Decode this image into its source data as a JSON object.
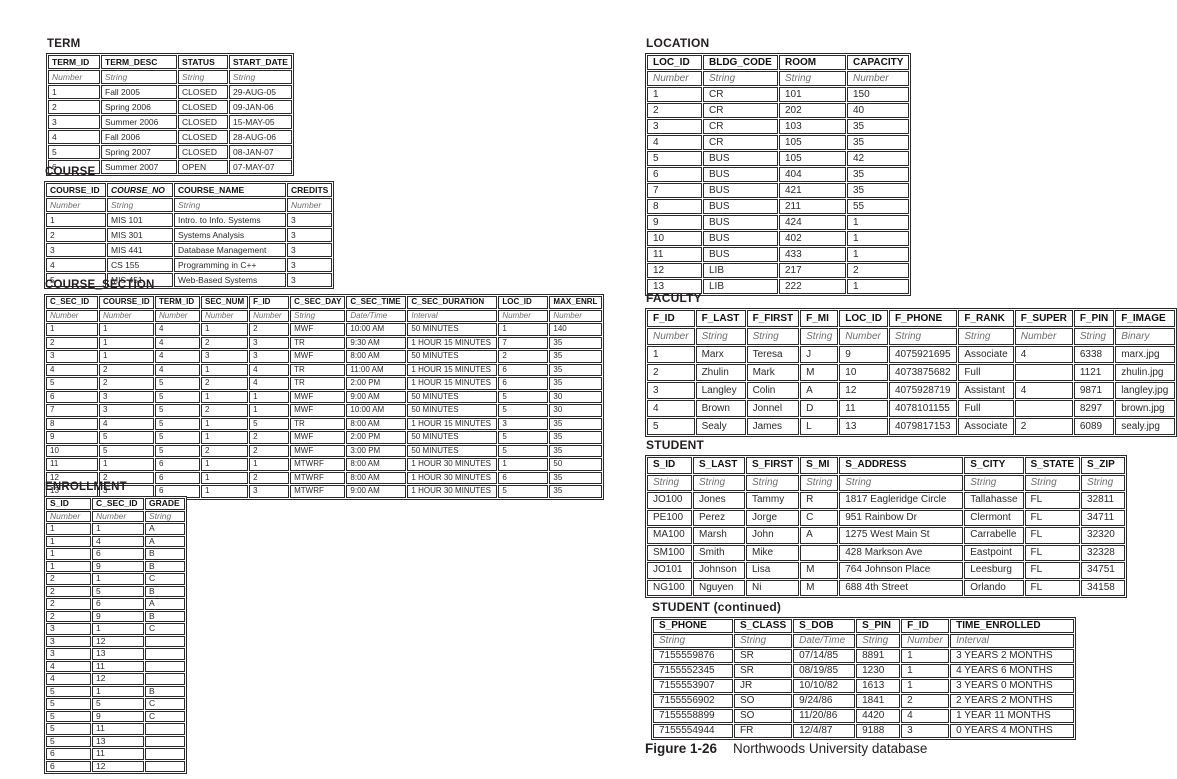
{
  "colors": {
    "text": "#231f20",
    "muted_type_text": "#6e6e6e",
    "border": "#2b2b2b",
    "background": "#ffffff"
  },
  "tables": {
    "term": {
      "title": "TERM",
      "headers": [
        "TERM_ID",
        "TERM_DESC",
        "STATUS",
        "START_DATE"
      ],
      "types": [
        "Number",
        "String",
        "String",
        "String"
      ],
      "rows": [
        [
          "1",
          "Fall 2005",
          "CLOSED",
          "29-AUG-05"
        ],
        [
          "2",
          "Spring 2006",
          "CLOSED",
          "09-JAN-06"
        ],
        [
          "3",
          "Summer 2006",
          "CLOSED",
          "15-MAY-05"
        ],
        [
          "4",
          "Fall 2006",
          "CLOSED",
          "28-AUG-06"
        ],
        [
          "5",
          "Spring 2007",
          "CLOSED",
          "08-JAN-07"
        ],
        [
          "6",
          "Summer 2007",
          "OPEN",
          "07-MAY-07"
        ]
      ]
    },
    "course": {
      "title": "COURSE",
      "headers": [
        "COURSE_ID",
        "COURSE_NO",
        "COURSE_NAME",
        "CREDITS"
      ],
      "italic_headers": [
        1
      ],
      "types": [
        "Number",
        "String",
        "String",
        "Number"
      ],
      "rows": [
        [
          "1",
          "MIS 101",
          "Intro. to Info. Systems",
          "3"
        ],
        [
          "2",
          "MIS 301",
          "Systems Analysis",
          "3"
        ],
        [
          "3",
          "MIS 441",
          "Database Management",
          "3"
        ],
        [
          "4",
          "CS 155",
          "Programming in C++",
          "3"
        ],
        [
          "5",
          "MIS 451",
          "Web-Based Systems",
          "3"
        ]
      ]
    },
    "course_section": {
      "title": "COURSE_SECTION",
      "headers": [
        "C_SEC_ID",
        "COURSE_ID",
        "TERM_ID",
        "SEC_NUM",
        "F_ID",
        "C_SEC_DAY",
        "C_SEC_TIME",
        "C_SEC_DURATION",
        "LOC_ID",
        "MAX_ENRL"
      ],
      "types": [
        "Number",
        "Number",
        "Number",
        "Number",
        "Number",
        "String",
        "Date/Time",
        "Interval",
        "Number",
        "Number"
      ],
      "rows": [
        [
          "1",
          "1",
          "4",
          "1",
          "2",
          "MWF",
          "10:00 AM",
          "50 MINUTES",
          "1",
          "140"
        ],
        [
          "2",
          "1",
          "4",
          "2",
          "3",
          "TR",
          "9:30 AM",
          "1 HOUR 15 MINUTES",
          "7",
          "35"
        ],
        [
          "3",
          "1",
          "4",
          "3",
          "3",
          "MWF",
          "8:00 AM",
          "50 MINUTES",
          "2",
          "35"
        ],
        [
          "4",
          "2",
          "4",
          "1",
          "4",
          "TR",
          "11:00 AM",
          "1 HOUR 15 MINUTES",
          "6",
          "35"
        ],
        [
          "5",
          "2",
          "5",
          "2",
          "4",
          "TR",
          "2:00 PM",
          "1 HOUR 15 MINUTES",
          "6",
          "35"
        ],
        [
          "6",
          "3",
          "5",
          "1",
          "1",
          "MWF",
          "9:00 AM",
          "50 MINUTES",
          "5",
          "30"
        ],
        [
          "7",
          "3",
          "5",
          "2",
          "1",
          "MWF",
          "10:00 AM",
          "50 MINUTES",
          "5",
          "30"
        ],
        [
          "8",
          "4",
          "5",
          "1",
          "5",
          "TR",
          "8:00 AM",
          "1 HOUR 15 MINUTES",
          "3",
          "35"
        ],
        [
          "9",
          "5",
          "5",
          "1",
          "2",
          "MWF",
          "2:00 PM",
          "50 MINUTES",
          "5",
          "35"
        ],
        [
          "10",
          "5",
          "5",
          "2",
          "2",
          "MWF",
          "3:00 PM",
          "50 MINUTES",
          "5",
          "35"
        ],
        [
          "11",
          "1",
          "6",
          "1",
          "1",
          "MTWRF",
          "8:00 AM",
          "1 HOUR 30 MINUTES",
          "1",
          "50"
        ],
        [
          "12",
          "2",
          "6",
          "1",
          "2",
          "MTWRF",
          "8:00 AM",
          "1 HOUR 30 MINUTES",
          "6",
          "35"
        ],
        [
          "13",
          "3",
          "6",
          "1",
          "3",
          "MTWRF",
          "9:00 AM",
          "1 HOUR 30 MINUTES",
          "5",
          "35"
        ]
      ]
    },
    "enrollment": {
      "title": "ENROLLMENT",
      "headers": [
        "S_ID",
        "C_SEC_ID",
        "GRADE"
      ],
      "types": [
        "Number",
        "Number",
        "String"
      ],
      "rows": [
        [
          "1",
          "1",
          "A"
        ],
        [
          "1",
          "4",
          "A"
        ],
        [
          "1",
          "6",
          "B"
        ],
        [
          "1",
          "9",
          "B"
        ],
        [
          "2",
          "1",
          "C"
        ],
        [
          "2",
          "5",
          "B"
        ],
        [
          "2",
          "6",
          "A"
        ],
        [
          "2",
          "9",
          "B"
        ],
        [
          "3",
          "1",
          "C"
        ],
        [
          "3",
          "12",
          ""
        ],
        [
          "3",
          "13",
          ""
        ],
        [
          "4",
          "11",
          ""
        ],
        [
          "4",
          "12",
          ""
        ],
        [
          "5",
          "1",
          "B"
        ],
        [
          "5",
          "5",
          "C"
        ],
        [
          "5",
          "9",
          "C"
        ],
        [
          "5",
          "11",
          ""
        ],
        [
          "5",
          "13",
          ""
        ],
        [
          "6",
          "11",
          ""
        ],
        [
          "6",
          "12",
          ""
        ]
      ]
    },
    "location": {
      "title": "LOCATION",
      "headers": [
        "LOC_ID",
        "BLDG_CODE",
        "ROOM",
        "CAPACITY"
      ],
      "types": [
        "Number",
        "String",
        "String",
        "Number"
      ],
      "rows": [
        [
          "1",
          "CR",
          "101",
          "150"
        ],
        [
          "2",
          "CR",
          "202",
          "40"
        ],
        [
          "3",
          "CR",
          "103",
          "35"
        ],
        [
          "4",
          "CR",
          "105",
          "35"
        ],
        [
          "5",
          "BUS",
          "105",
          "42"
        ],
        [
          "6",
          "BUS",
          "404",
          "35"
        ],
        [
          "7",
          "BUS",
          "421",
          "35"
        ],
        [
          "8",
          "BUS",
          "211",
          "55"
        ],
        [
          "9",
          "BUS",
          "424",
          "1"
        ],
        [
          "10",
          "BUS",
          "402",
          "1"
        ],
        [
          "11",
          "BUS",
          "433",
          "1"
        ],
        [
          "12",
          "LIB",
          "217",
          "2"
        ],
        [
          "13",
          "LIB",
          "222",
          "1"
        ]
      ]
    },
    "faculty": {
      "title": "FACULTY",
      "headers": [
        "F_ID",
        "F_LAST",
        "F_FIRST",
        "F_MI",
        "LOC_ID",
        "F_PHONE",
        "F_RANK",
        "F_SUPER",
        "F_PIN",
        "F_IMAGE"
      ],
      "types": [
        "Number",
        "String",
        "String",
        "String",
        "Number",
        "String",
        "String",
        "Number",
        "String",
        "Binary"
      ],
      "rows": [
        [
          "1",
          "Marx",
          "Teresa",
          "J",
          "9",
          "4075921695",
          "Associate",
          "4",
          "6338",
          "marx.jpg"
        ],
        [
          "2",
          "Zhulin",
          "Mark",
          "M",
          "10",
          "4073875682",
          "Full",
          "",
          "1121",
          "zhulin.jpg"
        ],
        [
          "3",
          "Langley",
          "Colin",
          "A",
          "12",
          "4075928719",
          "Assistant",
          "4",
          "9871",
          "langley.jpg"
        ],
        [
          "4",
          "Brown",
          "Jonnel",
          "D",
          "11",
          "4078101155",
          "Full",
          "",
          "8297",
          "brown.jpg"
        ],
        [
          "5",
          "Sealy",
          "James",
          "L",
          "13",
          "4079817153",
          "Associate",
          "2",
          "6089",
          "sealy.jpg"
        ]
      ]
    },
    "student": {
      "title": "STUDENT",
      "headers": [
        "S_ID",
        "S_LAST",
        "S_FIRST",
        "S_MI",
        "S_ADDRESS",
        "S_CITY",
        "S_STATE",
        "S_ZIP"
      ],
      "types": [
        "String",
        "String",
        "String",
        "String",
        "String",
        "String",
        "String",
        "String"
      ],
      "rows": [
        [
          "JO100",
          "Jones",
          "Tammy",
          "R",
          "1817 Eagleridge Circle",
          "Tallahasse",
          "FL",
          "32811"
        ],
        [
          "PE100",
          "Perez",
          "Jorge",
          "C",
          "951 Rainbow Dr",
          "Clermont",
          "FL",
          "34711"
        ],
        [
          "MA100",
          "Marsh",
          "John",
          "A",
          "1275 West Main St",
          "Carrabelle",
          "FL",
          "32320"
        ],
        [
          "SM100",
          "Smith",
          "Mike",
          "",
          "428 Markson Ave",
          "Eastpoint",
          "FL",
          "32328"
        ],
        [
          "JO101",
          "Johnson",
          "Lisa",
          "M",
          "764 Johnson Place",
          "Leesburg",
          "FL",
          "34751"
        ],
        [
          "NG100",
          "Nguyen",
          "Ni",
          "M",
          "688 4th Street",
          "Orlando",
          "FL",
          "34158"
        ]
      ]
    },
    "student_continued": {
      "title": "STUDENT (continued)",
      "headers": [
        "S_PHONE",
        "S_CLASS",
        "S_DOB",
        "S_PIN",
        "F_ID",
        "TIME_ENROLLED"
      ],
      "types": [
        "String",
        "String",
        "Date/Time",
        "String",
        "Number",
        "Interval"
      ],
      "rows": [
        [
          "7155559876",
          "SR",
          "07/14/85",
          "8891",
          "1",
          "3 YEARS 2 MONTHS"
        ],
        [
          "7155552345",
          "SR",
          "08/19/85",
          "1230",
          "1",
          "4 YEARS 6 MONTHS"
        ],
        [
          "7155553907",
          "JR",
          "10/10/82",
          "1613",
          "1",
          "3 YEARS 0 MONTHS"
        ],
        [
          "7155556902",
          "SO",
          "9/24/86",
          "1841",
          "2",
          "2 YEARS 2 MONTHS"
        ],
        [
          "7155558899",
          "SO",
          "11/20/86",
          "4420",
          "4",
          "1 YEAR 11 MONTHS"
        ],
        [
          "7155554944",
          "FR",
          "12/4/87",
          "9188",
          "3",
          "0 YEARS 4 MONTHS"
        ]
      ]
    }
  },
  "caption": {
    "label": "Figure 1-26",
    "title": "Northwoods University database"
  }
}
